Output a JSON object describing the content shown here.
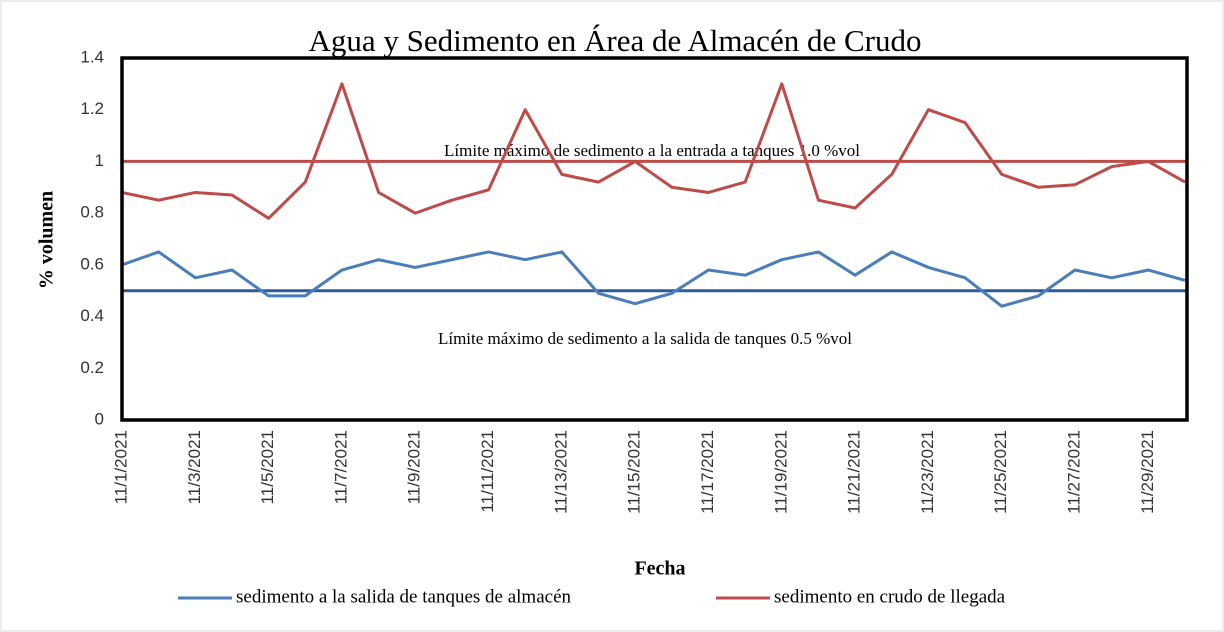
{
  "chart_data": {
    "type": "line",
    "title": "Agua y Sedimento en Área de Almacén de Crudo",
    "xlabel": "Fecha",
    "ylabel": "% volumen",
    "categories": [
      "11/1/2021",
      null,
      "11/3/2021",
      null,
      "11/5/2021",
      null,
      "11/7/2021",
      null,
      "11/9/2021",
      null,
      "11/11/2021",
      null,
      "11/13/2021",
      null,
      "11/15/2021",
      null,
      "11/17/2021",
      null,
      "11/19/2021",
      null,
      "11/21/2021",
      null,
      "11/23/2021",
      null,
      "11/25/2021",
      null,
      "11/27/2021",
      null,
      "11/29/2021",
      null
    ],
    "series": [
      {
        "name": "sedimento a la salida de tanques de almacén",
        "color": "#4a7ebb",
        "values": [
          0.6,
          0.65,
          0.55,
          0.58,
          0.48,
          0.48,
          0.58,
          0.62,
          0.59,
          0.62,
          0.65,
          0.62,
          0.65,
          0.49,
          0.45,
          0.49,
          0.58,
          0.56,
          0.62,
          0.65,
          0.56,
          0.65,
          0.59,
          0.55,
          0.44,
          0.48,
          0.58,
          0.55,
          0.58,
          0.54
        ]
      },
      {
        "name": "sedimento en crudo de llegada",
        "color": "#be4b48",
        "values": [
          0.88,
          0.85,
          0.88,
          0.87,
          0.78,
          0.92,
          1.3,
          0.88,
          0.8,
          0.85,
          0.89,
          1.2,
          0.95,
          0.92,
          1.0,
          0.9,
          0.88,
          0.92,
          1.3,
          0.85,
          0.82,
          0.95,
          1.2,
          1.15,
          0.95,
          0.9,
          0.91,
          0.98,
          1.0,
          0.92
        ]
      }
    ],
    "reference_lines": [
      {
        "value": 1.0,
        "color": "#be4b48",
        "label": "Límite máximo de sedimento a la entrada a tanques 1.0 %vol"
      },
      {
        "value": 0.5,
        "color": "#2c5d98",
        "label": "Límite máximo de sedimento a la salida de tanques 0.5 %vol"
      }
    ],
    "ylim": [
      0,
      1.4
    ],
    "yticks": [
      0,
      0.2,
      0.4,
      0.6,
      0.8,
      1,
      1.2,
      1.4
    ],
    "grid": false,
    "legend": "bottom"
  }
}
